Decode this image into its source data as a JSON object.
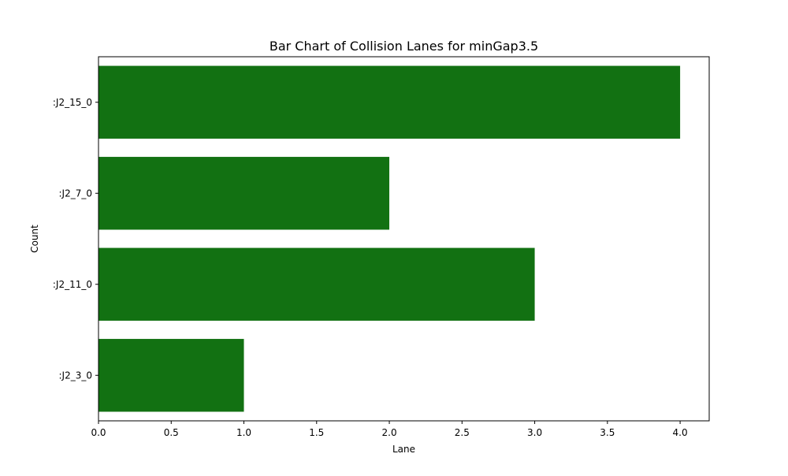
{
  "chart_data": {
    "type": "bar",
    "orientation": "horizontal",
    "title": "Bar Chart of Collision Lanes for minGap3.5",
    "xlabel": "Lane",
    "ylabel": "Count",
    "categories": [
      ":J2_15_0",
      ":J2_7_0",
      ":J2_11_0",
      ":J2_3_0"
    ],
    "values": [
      4,
      2,
      3,
      1
    ],
    "xlim": [
      0,
      4.2
    ],
    "xticks": [
      "0.0",
      "0.5",
      "1.0",
      "1.5",
      "2.0",
      "2.5",
      "3.0",
      "3.5",
      "4.0"
    ],
    "bar_color": "#127112",
    "grid": false,
    "legend": "none"
  }
}
